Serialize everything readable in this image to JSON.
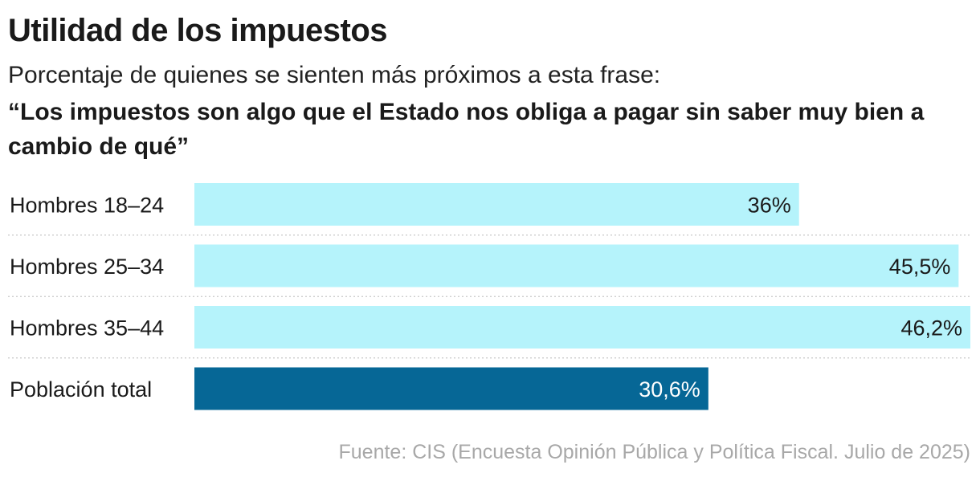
{
  "title": "Utilidad de los impuestos",
  "subtitle": "Porcentaje de quienes se sienten más próximos a esta frase:",
  "quote": "“Los impuestos son algo que el Estado nos obliga a pagar sin saber muy bien a cambio de qué”",
  "source": "Fuente: CIS (Encuesta Opinión Pública y Política Fiscal. Julio de 2025)",
  "colors": {
    "highlight_bar": "#b5f3fb",
    "total_bar": "#066796",
    "separator": "#c8c8c8",
    "text": "#1a1a1a",
    "label_on_dark": "#ffffff"
  },
  "chart_data": {
    "type": "bar",
    "orientation": "horizontal",
    "title": "Utilidad de los impuestos",
    "xlabel": "",
    "ylabel": "",
    "xlim": [
      0,
      46.2
    ],
    "categories": [
      "Hombres 18–24",
      "Hombres 25–34",
      "Hombres 35–44",
      "Población total"
    ],
    "values": [
      36,
      45.5,
      46.2,
      30.6
    ],
    "value_labels": [
      "36%",
      "45,5%",
      "46,2%",
      "30,6%"
    ],
    "highlight": [
      false,
      false,
      false,
      true
    ]
  }
}
